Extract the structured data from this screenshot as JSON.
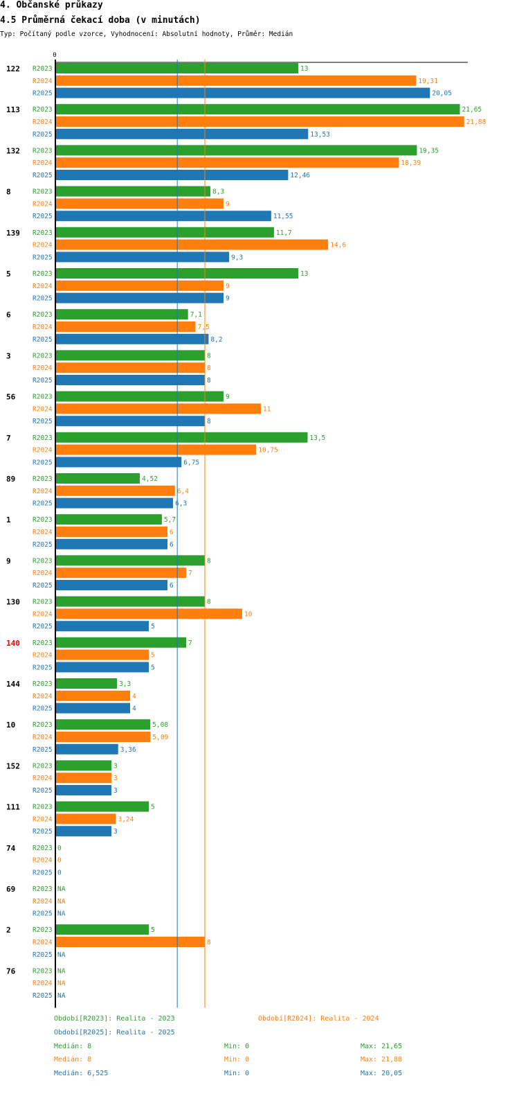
{
  "header": {
    "section": "4. Občanské průkazy",
    "subtitle": "4.5 Průměrná čekací doba (v minutách)",
    "meta": "Typ: Počítaný podle vzorce, Vyhodnocení: Absolutní hodnoty, Průměr: Medián"
  },
  "chart_data": {
    "type": "bar",
    "orientation": "horizontal",
    "axis_zero_label": "0",
    "xlim": [
      0,
      22
    ],
    "series": [
      {
        "name": "R2023",
        "color": "#2ca02c"
      },
      {
        "name": "R2024",
        "color": "#ff7f0e"
      },
      {
        "name": "R2025",
        "color": "#1f77b4"
      }
    ],
    "reference_lines": [
      {
        "series": "R2025",
        "value": 6.525,
        "color": "#1f77b4"
      },
      {
        "series": "R2024",
        "value": 8,
        "color": "#ff7f0e"
      }
    ],
    "groups": [
      {
        "id": "122",
        "highlight": false,
        "values": [
          13,
          19.31,
          20.05
        ],
        "labels": [
          "13",
          "19,31",
          "20,05"
        ]
      },
      {
        "id": "113",
        "highlight": false,
        "values": [
          21.65,
          21.88,
          13.53
        ],
        "labels": [
          "21,65",
          "21,88",
          "13,53"
        ]
      },
      {
        "id": "132",
        "highlight": false,
        "values": [
          19.35,
          18.39,
          12.46
        ],
        "labels": [
          "19,35",
          "18,39",
          "12,46"
        ]
      },
      {
        "id": "8",
        "highlight": false,
        "values": [
          8.3,
          9,
          11.55
        ],
        "labels": [
          "8,3",
          "9",
          "11,55"
        ]
      },
      {
        "id": "139",
        "highlight": false,
        "values": [
          11.7,
          14.6,
          9.3
        ],
        "labels": [
          "11,7",
          "14,6",
          "9,3"
        ]
      },
      {
        "id": "5",
        "highlight": false,
        "values": [
          13,
          9,
          9
        ],
        "labels": [
          "13",
          "9",
          "9"
        ]
      },
      {
        "id": "6",
        "highlight": false,
        "values": [
          7.1,
          7.5,
          8.2
        ],
        "labels": [
          "7,1",
          "7,5",
          "8,2"
        ]
      },
      {
        "id": "3",
        "highlight": false,
        "values": [
          8,
          8,
          8
        ],
        "labels": [
          "8",
          "8",
          "8"
        ]
      },
      {
        "id": "56",
        "highlight": false,
        "values": [
          9,
          11,
          8
        ],
        "labels": [
          "9",
          "11",
          "8"
        ]
      },
      {
        "id": "7",
        "highlight": false,
        "values": [
          13.5,
          10.75,
          6.75
        ],
        "labels": [
          "13,5",
          "10,75",
          "6,75"
        ]
      },
      {
        "id": "89",
        "highlight": false,
        "values": [
          4.52,
          6.4,
          6.3
        ],
        "labels": [
          "4,52",
          "6,4",
          "6,3"
        ]
      },
      {
        "id": "1",
        "highlight": false,
        "values": [
          5.7,
          6,
          6
        ],
        "labels": [
          "5,7",
          "6",
          "6"
        ]
      },
      {
        "id": "9",
        "highlight": false,
        "values": [
          8,
          7,
          6
        ],
        "labels": [
          "8",
          "7",
          "6"
        ]
      },
      {
        "id": "130",
        "highlight": false,
        "values": [
          8,
          10,
          5
        ],
        "labels": [
          "8",
          "10",
          "5"
        ]
      },
      {
        "id": "140",
        "highlight": true,
        "values": [
          7,
          5,
          5
        ],
        "labels": [
          "7",
          "5",
          "5"
        ]
      },
      {
        "id": "144",
        "highlight": false,
        "values": [
          3.3,
          4,
          4
        ],
        "labels": [
          "3,3",
          "4",
          "4"
        ]
      },
      {
        "id": "10",
        "highlight": false,
        "values": [
          5.08,
          5.09,
          3.36
        ],
        "labels": [
          "5,08",
          "5,09",
          "3,36"
        ]
      },
      {
        "id": "152",
        "highlight": false,
        "values": [
          3,
          3,
          3
        ],
        "labels": [
          "3",
          "3",
          "3"
        ]
      },
      {
        "id": "111",
        "highlight": false,
        "values": [
          5,
          3.24,
          3
        ],
        "labels": [
          "5",
          "3,24",
          "3"
        ]
      },
      {
        "id": "74",
        "highlight": false,
        "values": [
          0,
          0,
          0
        ],
        "labels": [
          "0",
          "0",
          "0"
        ]
      },
      {
        "id": "69",
        "highlight": false,
        "values": [
          null,
          null,
          null
        ],
        "labels": [
          "NA",
          "NA",
          "NA"
        ]
      },
      {
        "id": "2",
        "highlight": false,
        "values": [
          5,
          8,
          null
        ],
        "labels": [
          "5",
          "8",
          "NA"
        ]
      },
      {
        "id": "76",
        "highlight": false,
        "values": [
          null,
          null,
          null
        ],
        "labels": [
          "NA",
          "NA",
          "NA"
        ]
      }
    ]
  },
  "legend": {
    "r2023": "Období[R2023]: Realita - 2023",
    "r2024": "Období[R2024]: Realita - 2024",
    "r2025": "Období[R2025]: Realita - 2025"
  },
  "stats": [
    {
      "median": "Medián: 8",
      "min": "Min: 0",
      "max": "Max: 21,65"
    },
    {
      "median": "Medián: 8",
      "min": "Min: 0",
      "max": "Max: 21,88"
    },
    {
      "median": "Medián: 6,525",
      "min": "Min: 0",
      "max": "Max: 20,05"
    }
  ],
  "colors": {
    "r2023": "#2ca02c",
    "r2024": "#ff7f0e",
    "r2025": "#1f77b4",
    "highlight": "#ff0000",
    "text": "#000000"
  }
}
